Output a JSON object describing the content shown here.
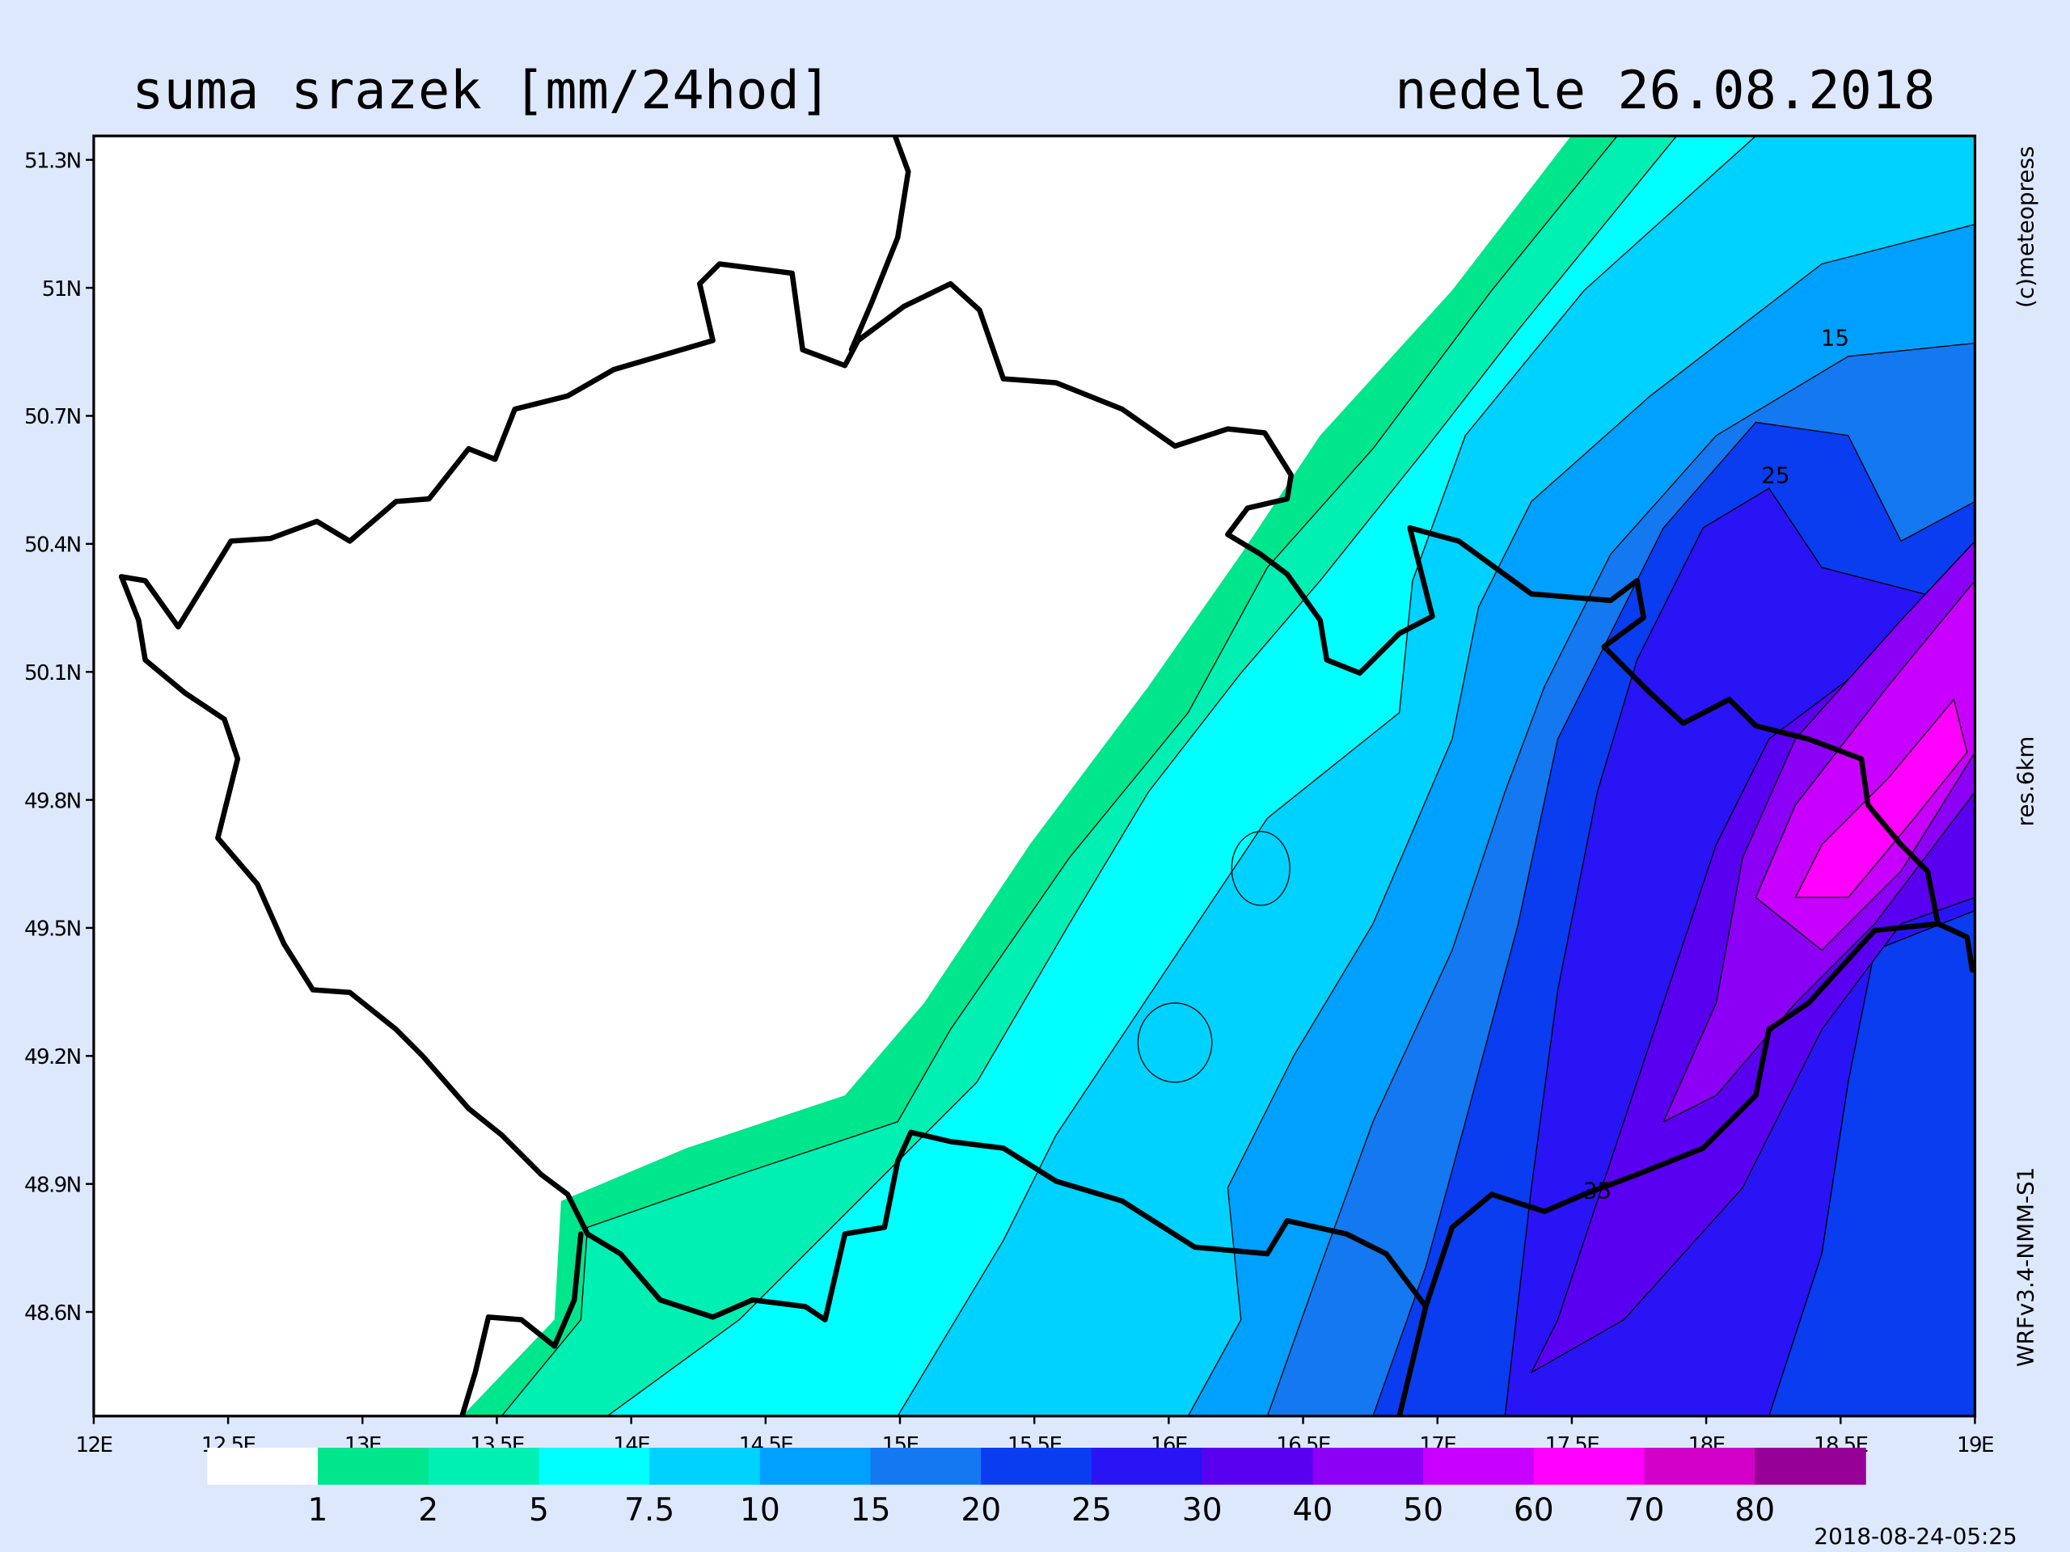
{
  "map": {
    "title": "suma srazek [mm/24hod]",
    "date": "nedele 26.08.2018",
    "lon_range": [
      12,
      19
    ],
    "lat_range": [
      48.356,
      51.356
    ],
    "lon_ticks": [
      {
        "value": 12,
        "label": "12E"
      },
      {
        "value": 12.5,
        "label": "12.5E"
      },
      {
        "value": 13,
        "label": "13E"
      },
      {
        "value": 13.5,
        "label": "13.5E"
      },
      {
        "value": 14,
        "label": "14E"
      },
      {
        "value": 14.5,
        "label": "14.5E"
      },
      {
        "value": 15,
        "label": "15E"
      },
      {
        "value": 15.5,
        "label": "15.5E"
      },
      {
        "value": 16,
        "label": "16E"
      },
      {
        "value": 16.5,
        "label": "16.5E"
      },
      {
        "value": 17,
        "label": "17E"
      },
      {
        "value": 17.5,
        "label": "17.5E"
      },
      {
        "value": 18,
        "label": "18E"
      },
      {
        "value": 18.5,
        "label": "18.5E"
      },
      {
        "value": 19,
        "label": "19E"
      }
    ],
    "lat_ticks": [
      {
        "value": 51.3,
        "label": "51.3N"
      },
      {
        "value": 51,
        "label": "51N"
      },
      {
        "value": 50.7,
        "label": "50.7N"
      },
      {
        "value": 50.4,
        "label": "50.4N"
      },
      {
        "value": 50.1,
        "label": "50.1N"
      },
      {
        "value": 49.8,
        "label": "49.8N"
      },
      {
        "value": 49.5,
        "label": "49.5N"
      },
      {
        "value": 49.2,
        "label": "49.2N"
      },
      {
        "value": 48.9,
        "label": "48.9N"
      },
      {
        "value": 48.6,
        "label": "48.6N"
      }
    ],
    "colorbar": {
      "levels": [
        1,
        2,
        5,
        7.5,
        10,
        15,
        20,
        25,
        30,
        40,
        50,
        60,
        70,
        80
      ],
      "colors": [
        "#ffffff",
        "#00e68c",
        "#00f0b4",
        "#00ffff",
        "#00d2ff",
        "#00a0ff",
        "#1478f0",
        "#0a3cf0",
        "#2814f5",
        "#5a00f0",
        "#8c00f5",
        "#c800ff",
        "#ff00ff",
        "#d200c8",
        "#960096"
      ]
    },
    "contour_labels": [
      "15",
      "25",
      "35"
    ],
    "copyright": "(c)meteopress",
    "resolution": "res.6km",
    "model": "WRFv3.4-NMM-S1",
    "run": "2018-08-24-05:25"
  }
}
